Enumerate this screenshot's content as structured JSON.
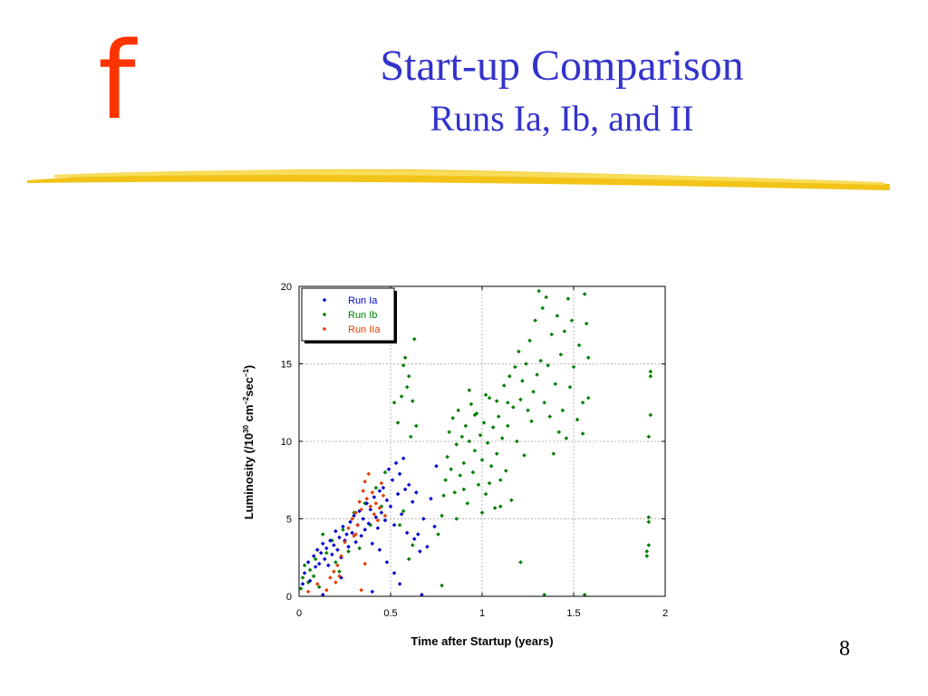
{
  "logo_letter": "f",
  "slide": {
    "title": "Start-up Comparison",
    "subtitle": "Runs Ia, Ib, and II",
    "page_number": "8"
  },
  "colors": {
    "title": "#3333cc",
    "logo": "#ff3300",
    "underline": "#f2c419",
    "run_ia": "#0000cc",
    "run_ib": "#008000",
    "run_iia": "#e23d00"
  },
  "chart_data": {
    "type": "scatter",
    "xlabel": "Time after Startup (years)",
    "ylabel": {
      "base": "Luminosity (/10",
      "exp1": "30",
      "mid1": " cm",
      "exp2": "–2",
      "mid2": "sec",
      "exp3": "–1",
      "end": ")"
    },
    "xlim": [
      0,
      2
    ],
    "ylim": [
      0,
      20
    ],
    "xticks": [
      0,
      0.5,
      1,
      1.5,
      2
    ],
    "xtick_labels": [
      "0",
      "0.5",
      "1",
      "1.5",
      "2"
    ],
    "yticks": [
      0,
      5,
      10,
      15,
      20
    ],
    "ytick_labels": [
      "0",
      "5",
      "10",
      "15",
      "20"
    ],
    "grid": true,
    "legend_position": "top-left",
    "series": [
      {
        "name": "Run Ia",
        "color": "#0000cc",
        "points": [
          [
            0.02,
            0.8
          ],
          [
            0.03,
            1.5
          ],
          [
            0.05,
            2.2
          ],
          [
            0.06,
            1.0
          ],
          [
            0.08,
            2.6
          ],
          [
            0.09,
            1.9
          ],
          [
            0.1,
            3.0
          ],
          [
            0.11,
            2.1
          ],
          [
            0.12,
            2.8
          ],
          [
            0.13,
            3.4
          ],
          [
            0.14,
            2.4
          ],
          [
            0.15,
            3.1
          ],
          [
            0.16,
            2.0
          ],
          [
            0.17,
            3.6
          ],
          [
            0.18,
            2.7
          ],
          [
            0.19,
            3.3
          ],
          [
            0.2,
            4.2
          ],
          [
            0.21,
            3.0
          ],
          [
            0.22,
            3.8
          ],
          [
            0.23,
            2.5
          ],
          [
            0.24,
            4.5
          ],
          [
            0.25,
            3.6
          ],
          [
            0.26,
            4.0
          ],
          [
            0.27,
            3.2
          ],
          [
            0.28,
            4.8
          ],
          [
            0.29,
            4.1
          ],
          [
            0.3,
            5.2
          ],
          [
            0.31,
            3.5
          ],
          [
            0.32,
            4.6
          ],
          [
            0.33,
            5.5
          ],
          [
            0.34,
            3.9
          ],
          [
            0.35,
            5.0
          ],
          [
            0.36,
            4.3
          ],
          [
            0.37,
            6.0
          ],
          [
            0.38,
            4.7
          ],
          [
            0.39,
            5.6
          ],
          [
            0.4,
            3.4
          ],
          [
            0.41,
            6.4
          ],
          [
            0.42,
            5.1
          ],
          [
            0.43,
            4.4
          ],
          [
            0.44,
            6.8
          ],
          [
            0.45,
            5.4
          ],
          [
            0.46,
            7.0
          ],
          [
            0.47,
            4.9
          ],
          [
            0.48,
            6.2
          ],
          [
            0.49,
            8.2
          ],
          [
            0.5,
            5.8
          ],
          [
            0.51,
            7.5
          ],
          [
            0.52,
            4.6
          ],
          [
            0.53,
            8.6
          ],
          [
            0.54,
            6.6
          ],
          [
            0.55,
            7.9
          ],
          [
            0.56,
            5.3
          ],
          [
            0.57,
            8.9
          ],
          [
            0.58,
            6.9
          ],
          [
            0.59,
            4.1
          ],
          [
            0.6,
            7.2
          ],
          [
            0.62,
            6.1
          ],
          [
            0.63,
            3.7
          ],
          [
            0.64,
            6.7
          ],
          [
            0.65,
            4.0
          ],
          [
            0.66,
            2.9
          ],
          [
            0.68,
            5.0
          ],
          [
            0.7,
            3.2
          ],
          [
            0.72,
            6.3
          ],
          [
            0.74,
            4.5
          ],
          [
            0.44,
            3.0
          ],
          [
            0.48,
            2.2
          ],
          [
            0.52,
            1.5
          ],
          [
            0.4,
            0.3
          ],
          [
            0.23,
            1.2
          ],
          [
            0.13,
            0.1
          ],
          [
            0.55,
            0.8
          ],
          [
            0.67,
            0.1
          ],
          [
            0.75,
            8.4
          ]
        ]
      },
      {
        "name": "Run Ib",
        "color": "#008000",
        "points": [
          [
            0.01,
            0.5
          ],
          [
            0.02,
            1.2
          ],
          [
            0.03,
            2.0
          ],
          [
            0.05,
            0.9
          ],
          [
            0.06,
            1.7
          ],
          [
            0.08,
            1.3
          ],
          [
            0.09,
            2.4
          ],
          [
            0.11,
            0.6
          ],
          [
            0.13,
            4.0
          ],
          [
            0.15,
            2.8
          ],
          [
            0.18,
            3.6
          ],
          [
            0.2,
            2.2
          ],
          [
            0.22,
            1.6
          ],
          [
            0.24,
            4.3
          ],
          [
            0.27,
            2.9
          ],
          [
            0.3,
            5.4
          ],
          [
            0.33,
            3.1
          ],
          [
            0.36,
            6.0
          ],
          [
            0.39,
            4.6
          ],
          [
            0.42,
            7.0
          ],
          [
            0.45,
            5.8
          ],
          [
            0.47,
            8.0
          ],
          [
            0.52,
            12.5
          ],
          [
            0.54,
            11.2
          ],
          [
            0.56,
            12.9
          ],
          [
            0.57,
            14.9
          ],
          [
            0.58,
            15.4
          ],
          [
            0.59,
            13.5
          ],
          [
            0.6,
            14.2
          ],
          [
            0.61,
            10.3
          ],
          [
            0.62,
            12.6
          ],
          [
            0.63,
            16.6
          ],
          [
            0.64,
            11.0
          ],
          [
            0.55,
            4.6
          ],
          [
            0.57,
            5.5
          ],
          [
            0.6,
            2.4
          ],
          [
            0.62,
            3.3
          ],
          [
            0.78,
            0.7
          ],
          [
            0.76,
            4.0
          ],
          [
            0.78,
            5.2
          ],
          [
            0.79,
            6.5
          ],
          [
            0.8,
            7.5
          ],
          [
            0.81,
            9.0
          ],
          [
            0.82,
            10.6
          ],
          [
            0.83,
            8.2
          ],
          [
            0.84,
            11.5
          ],
          [
            0.85,
            6.7
          ],
          [
            0.86,
            9.8
          ],
          [
            0.87,
            12.0
          ],
          [
            0.88,
            7.8
          ],
          [
            0.89,
            10.3
          ],
          [
            0.9,
            8.6
          ],
          [
            0.91,
            11.0
          ],
          [
            0.92,
            6.0
          ],
          [
            0.93,
            10.0
          ],
          [
            0.94,
            12.4
          ],
          [
            0.95,
            8.0
          ],
          [
            0.96,
            9.4
          ],
          [
            0.97,
            11.8
          ],
          [
            0.98,
            7.2
          ],
          [
            0.99,
            10.4
          ],
          [
            1.0,
            8.8
          ],
          [
            1.01,
            11.2
          ],
          [
            1.02,
            6.6
          ],
          [
            1.03,
            9.9
          ],
          [
            1.04,
            12.8
          ],
          [
            1.05,
            8.4
          ],
          [
            1.06,
            10.9
          ],
          [
            1.07,
            5.7
          ],
          [
            1.08,
            9.2
          ],
          [
            1.09,
            11.6
          ],
          [
            1.1,
            7.5
          ],
          [
            1.11,
            10.2
          ],
          [
            1.12,
            13.6
          ],
          [
            1.13,
            8.1
          ],
          [
            1.14,
            11.0
          ],
          [
            1.15,
            14.2
          ],
          [
            1.16,
            6.2
          ],
          [
            1.17,
            12.2
          ],
          [
            1.18,
            14.8
          ],
          [
            1.19,
            10.0
          ],
          [
            1.2,
            15.8
          ],
          [
            1.21,
            12.7
          ],
          [
            1.22,
            13.9
          ],
          [
            1.23,
            9.1
          ],
          [
            1.24,
            15.0
          ],
          [
            1.25,
            12.0
          ],
          [
            1.26,
            16.5
          ],
          [
            1.27,
            11.3
          ],
          [
            1.28,
            13.2
          ],
          [
            1.29,
            17.8
          ],
          [
            1.3,
            14.3
          ],
          [
            1.31,
            19.7
          ],
          [
            1.32,
            15.2
          ],
          [
            1.33,
            18.6
          ],
          [
            1.34,
            12.5
          ],
          [
            1.35,
            19.3
          ],
          [
            1.36,
            14.9
          ],
          [
            1.37,
            11.6
          ],
          [
            1.38,
            16.9
          ],
          [
            1.39,
            9.2
          ],
          [
            1.4,
            13.7
          ],
          [
            1.41,
            18.1
          ],
          [
            1.42,
            10.6
          ],
          [
            1.43,
            15.6
          ],
          [
            1.44,
            12.0
          ],
          [
            1.45,
            17.1
          ],
          [
            1.46,
            10.2
          ],
          [
            1.47,
            19.2
          ],
          [
            1.48,
            13.5
          ],
          [
            1.49,
            17.8
          ],
          [
            1.5,
            14.8
          ],
          [
            1.52,
            11.4
          ],
          [
            1.53,
            16.2
          ],
          [
            1.55,
            12.5
          ],
          [
            1.56,
            19.5
          ],
          [
            1.57,
            17.6
          ],
          [
            1.58,
            15.4
          ],
          [
            1.55,
            10.5
          ],
          [
            1.58,
            12.8
          ],
          [
            1.21,
            2.2
          ],
          [
            1.34,
            0.1
          ],
          [
            1.56,
            0.1
          ],
          [
            1.9,
            2.6
          ],
          [
            1.9,
            2.9
          ],
          [
            1.91,
            4.8
          ],
          [
            1.91,
            5.1
          ],
          [
            1.91,
            3.3
          ],
          [
            1.91,
            10.3
          ],
          [
            1.92,
            11.7
          ],
          [
            1.92,
            14.2
          ],
          [
            1.92,
            14.5
          ],
          [
            0.93,
            13.3
          ],
          [
            0.96,
            11.7
          ],
          [
            1.02,
            13.0
          ],
          [
            1.08,
            12.6
          ],
          [
            1.14,
            12.5
          ],
          [
            0.86,
            5.0
          ],
          [
            0.9,
            6.9
          ],
          [
            1.0,
            5.4
          ],
          [
            1.04,
            7.3
          ],
          [
            1.1,
            5.8
          ]
        ]
      },
      {
        "name": "Run IIa",
        "color": "#e23d00",
        "points": [
          [
            0.05,
            0.3
          ],
          [
            0.1,
            0.8
          ],
          [
            0.15,
            0.4
          ],
          [
            0.17,
            1.2
          ],
          [
            0.19,
            1.6
          ],
          [
            0.2,
            0.9
          ],
          [
            0.21,
            2.0
          ],
          [
            0.22,
            1.3
          ],
          [
            0.23,
            2.6
          ],
          [
            0.25,
            3.5
          ],
          [
            0.27,
            4.4
          ],
          [
            0.29,
            5.0
          ],
          [
            0.3,
            3.9
          ],
          [
            0.31,
            5.4
          ],
          [
            0.32,
            4.6
          ],
          [
            0.33,
            6.1
          ],
          [
            0.34,
            5.6
          ],
          [
            0.35,
            6.8
          ],
          [
            0.36,
            7.4
          ],
          [
            0.37,
            6.3
          ],
          [
            0.38,
            7.9
          ],
          [
            0.39,
            5.8
          ],
          [
            0.4,
            6.7
          ],
          [
            0.41,
            5.3
          ],
          [
            0.42,
            6.0
          ],
          [
            0.43,
            4.9
          ],
          [
            0.44,
            5.7
          ],
          [
            0.45,
            7.3
          ],
          [
            0.46,
            6.5
          ],
          [
            0.47,
            5.2
          ],
          [
            0.36,
            2.1
          ],
          [
            0.31,
            4.0
          ],
          [
            0.34,
            0.4
          ]
        ]
      }
    ]
  }
}
